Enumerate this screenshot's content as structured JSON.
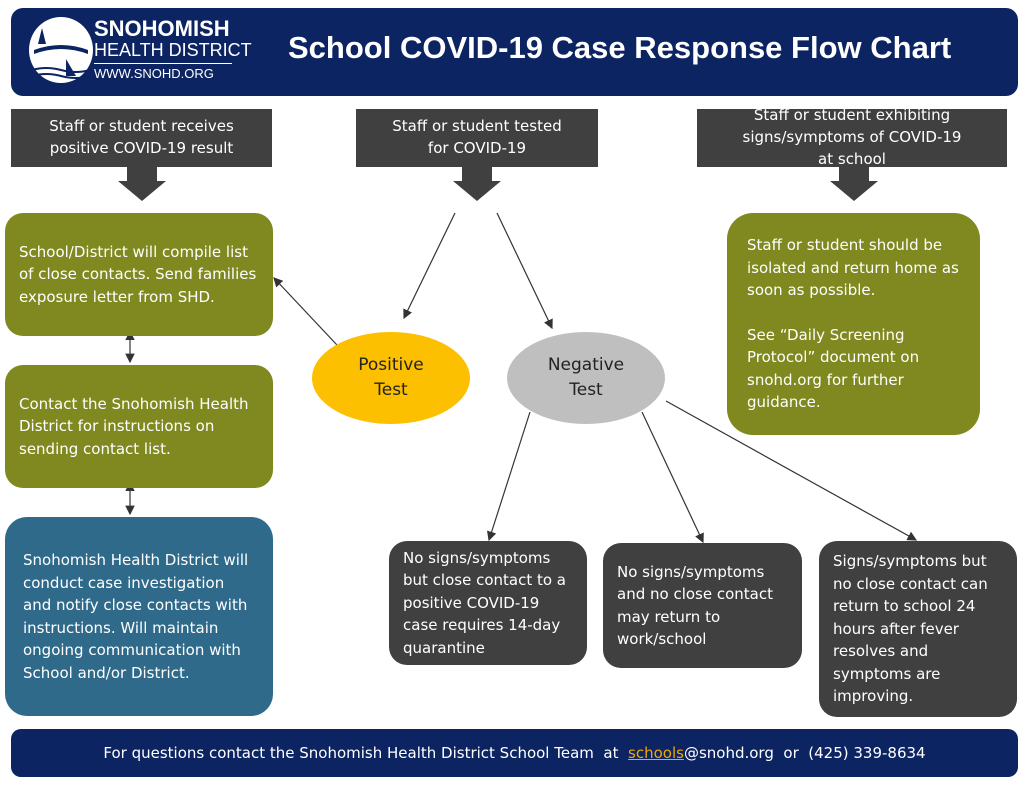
{
  "header": {
    "logo": {
      "line1": "SNOHOMISH",
      "line2": "HEALTH DISTRICT",
      "line3": "WWW.SNOHD.ORG"
    },
    "title": "School COVID-19 Case Response Flow Chart"
  },
  "starts": [
    {
      "label": "Staff or student receives positive COVID-19 result"
    },
    {
      "label": "Staff or student tested for COVID-19"
    },
    {
      "label": "Staff or student exhibiting signs/symptoms of COVID-19 at school"
    }
  ],
  "left_steps": [
    {
      "text": "School/District will compile list of close contacts. Send families exposure letter from SHD."
    },
    {
      "text": "Contact the Snohomish Health District for instructions on sending contact list."
    },
    {
      "text": "Snohomish Health District will conduct case investigation and notify close contacts with instructions. Will maintain ongoing communication with School and/or District."
    }
  ],
  "symptom_box": {
    "para1": "Staff or student should be isolated and return home as soon as possible.",
    "para2": "See “Daily Screening Protocol” document on snohd.org for further guidance."
  },
  "results": {
    "positive": "Positive Test",
    "negative": "Negative Test"
  },
  "outcomes": [
    {
      "text": "No signs/symptoms but close contact to a positive COVID-19 case requires 14-day quarantine"
    },
    {
      "text": "No signs/symptoms and no close contact may return to work/school"
    },
    {
      "text": "Signs/symptoms but no close contact can return to school 24 hours after fever resolves and symptoms are improving."
    }
  ],
  "footer": {
    "prefix": "For questions contact the Snohomish Health District School Team  at  ",
    "link": "schools",
    "email_rest": "@snohd.org",
    "or": "  or  ",
    "phone": "(425) 339-8634"
  },
  "colors": {
    "navy": "#0c2461",
    "olive": "#7f891f",
    "teal": "#2f6a8a",
    "dark": "#404040",
    "yellow": "#fcc000",
    "gray": "#bfbfbf",
    "link": "#f2a900"
  }
}
